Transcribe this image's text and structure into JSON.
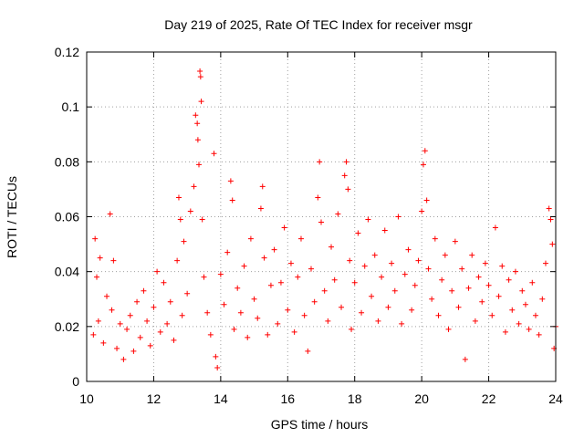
{
  "chart_data": {
    "type": "scatter",
    "title": "Day 219 of 2025, Rate Of TEC Index for receiver msgr",
    "xlabel": "GPS time / hours",
    "ylabel": "ROTI / TECUs",
    "xlim": [
      10,
      24
    ],
    "ylim": [
      0,
      0.12
    ],
    "xticks": [
      10,
      12,
      14,
      16,
      18,
      20,
      22,
      24
    ],
    "xtick_labels": [
      "10",
      "12",
      "14",
      "16",
      "18",
      "20",
      "22",
      "24"
    ],
    "yticks": [
      0,
      0.02,
      0.04,
      0.06,
      0.08,
      0.1,
      0.12
    ],
    "ytick_labels": [
      "0",
      "0.02",
      "0.04",
      "0.06",
      "0.08",
      "0.1",
      "0.12"
    ],
    "grid": true,
    "marker": "+",
    "color": "#ff0000",
    "series": [
      {
        "name": "ROTI",
        "points": [
          [
            10.2,
            0.017
          ],
          [
            10.25,
            0.052
          ],
          [
            10.3,
            0.038
          ],
          [
            10.35,
            0.022
          ],
          [
            10.4,
            0.045
          ],
          [
            10.5,
            0.014
          ],
          [
            10.6,
            0.031
          ],
          [
            10.7,
            0.061
          ],
          [
            10.75,
            0.026
          ],
          [
            10.8,
            0.044
          ],
          [
            10.9,
            0.012
          ],
          [
            11.0,
            0.021
          ],
          [
            11.1,
            0.008
          ],
          [
            11.2,
            0.019
          ],
          [
            11.3,
            0.024
          ],
          [
            11.4,
            0.011
          ],
          [
            11.5,
            0.029
          ],
          [
            11.6,
            0.016
          ],
          [
            11.7,
            0.033
          ],
          [
            11.8,
            0.022
          ],
          [
            11.9,
            0.013
          ],
          [
            12.0,
            0.027
          ],
          [
            12.1,
            0.04
          ],
          [
            12.2,
            0.018
          ],
          [
            12.3,
            0.036
          ],
          [
            12.4,
            0.021
          ],
          [
            12.5,
            0.029
          ],
          [
            12.6,
            0.015
          ],
          [
            12.7,
            0.044
          ],
          [
            12.75,
            0.067
          ],
          [
            12.8,
            0.059
          ],
          [
            12.85,
            0.024
          ],
          [
            12.9,
            0.051
          ],
          [
            13.0,
            0.032
          ],
          [
            13.1,
            0.062
          ],
          [
            13.2,
            0.071
          ],
          [
            13.25,
            0.097
          ],
          [
            13.3,
            0.094
          ],
          [
            13.32,
            0.088
          ],
          [
            13.35,
            0.079
          ],
          [
            13.38,
            0.113
          ],
          [
            13.4,
            0.111
          ],
          [
            13.42,
            0.102
          ],
          [
            13.45,
            0.059
          ],
          [
            13.5,
            0.038
          ],
          [
            13.6,
            0.025
          ],
          [
            13.7,
            0.017
          ],
          [
            13.8,
            0.083
          ],
          [
            13.85,
            0.009
          ],
          [
            13.9,
            0.005
          ],
          [
            14.0,
            0.039
          ],
          [
            14.1,
            0.028
          ],
          [
            14.2,
            0.047
          ],
          [
            14.3,
            0.073
          ],
          [
            14.35,
            0.066
          ],
          [
            14.4,
            0.019
          ],
          [
            14.5,
            0.034
          ],
          [
            14.6,
            0.025
          ],
          [
            14.7,
            0.042
          ],
          [
            14.8,
            0.016
          ],
          [
            14.9,
            0.052
          ],
          [
            15.0,
            0.03
          ],
          [
            15.1,
            0.023
          ],
          [
            15.2,
            0.063
          ],
          [
            15.25,
            0.071
          ],
          [
            15.3,
            0.045
          ],
          [
            15.4,
            0.017
          ],
          [
            15.5,
            0.035
          ],
          [
            15.6,
            0.048
          ],
          [
            15.7,
            0.021
          ],
          [
            15.8,
            0.036
          ],
          [
            15.9,
            0.056
          ],
          [
            16.0,
            0.026
          ],
          [
            16.1,
            0.043
          ],
          [
            16.2,
            0.018
          ],
          [
            16.3,
            0.038
          ],
          [
            16.4,
            0.052
          ],
          [
            16.5,
            0.024
          ],
          [
            16.6,
            0.011
          ],
          [
            16.7,
            0.041
          ],
          [
            16.8,
            0.029
          ],
          [
            16.9,
            0.067
          ],
          [
            16.95,
            0.08
          ],
          [
            17.0,
            0.058
          ],
          [
            17.1,
            0.033
          ],
          [
            17.2,
            0.022
          ],
          [
            17.3,
            0.049
          ],
          [
            17.4,
            0.037
          ],
          [
            17.5,
            0.061
          ],
          [
            17.6,
            0.027
          ],
          [
            17.7,
            0.075
          ],
          [
            17.75,
            0.08
          ],
          [
            17.8,
            0.07
          ],
          [
            17.85,
            0.044
          ],
          [
            17.9,
            0.019
          ],
          [
            18.0,
            0.036
          ],
          [
            18.1,
            0.054
          ],
          [
            18.2,
            0.025
          ],
          [
            18.3,
            0.042
          ],
          [
            18.4,
            0.059
          ],
          [
            18.5,
            0.031
          ],
          [
            18.6,
            0.046
          ],
          [
            18.7,
            0.022
          ],
          [
            18.8,
            0.038
          ],
          [
            18.9,
            0.055
          ],
          [
            19.0,
            0.027
          ],
          [
            19.1,
            0.043
          ],
          [
            19.2,
            0.033
          ],
          [
            19.3,
            0.06
          ],
          [
            19.4,
            0.021
          ],
          [
            19.5,
            0.039
          ],
          [
            19.6,
            0.048
          ],
          [
            19.7,
            0.026
          ],
          [
            19.8,
            0.035
          ],
          [
            19.9,
            0.044
          ],
          [
            20.0,
            0.062
          ],
          [
            20.05,
            0.079
          ],
          [
            20.1,
            0.084
          ],
          [
            20.15,
            0.066
          ],
          [
            20.2,
            0.041
          ],
          [
            20.3,
            0.03
          ],
          [
            20.4,
            0.052
          ],
          [
            20.5,
            0.024
          ],
          [
            20.6,
            0.037
          ],
          [
            20.7,
            0.046
          ],
          [
            20.8,
            0.019
          ],
          [
            20.9,
            0.033
          ],
          [
            21.0,
            0.051
          ],
          [
            21.1,
            0.027
          ],
          [
            21.2,
            0.041
          ],
          [
            21.3,
            0.008
          ],
          [
            21.4,
            0.034
          ],
          [
            21.5,
            0.046
          ],
          [
            21.6,
            0.022
          ],
          [
            21.7,
            0.038
          ],
          [
            21.8,
            0.029
          ],
          [
            21.9,
            0.043
          ],
          [
            22.0,
            0.035
          ],
          [
            22.1,
            0.024
          ],
          [
            22.2,
            0.056
          ],
          [
            22.3,
            0.031
          ],
          [
            22.4,
            0.042
          ],
          [
            22.5,
            0.018
          ],
          [
            22.6,
            0.037
          ],
          [
            22.7,
            0.026
          ],
          [
            22.8,
            0.04
          ],
          [
            22.9,
            0.021
          ],
          [
            23.0,
            0.033
          ],
          [
            23.1,
            0.028
          ],
          [
            23.2,
            0.019
          ],
          [
            23.3,
            0.036
          ],
          [
            23.4,
            0.024
          ],
          [
            23.5,
            0.017
          ],
          [
            23.6,
            0.03
          ],
          [
            23.7,
            0.043
          ],
          [
            23.8,
            0.063
          ],
          [
            23.85,
            0.059
          ],
          [
            23.9,
            0.05
          ],
          [
            23.95,
            0.012
          ],
          [
            24.0,
            0.02
          ]
        ]
      }
    ]
  }
}
